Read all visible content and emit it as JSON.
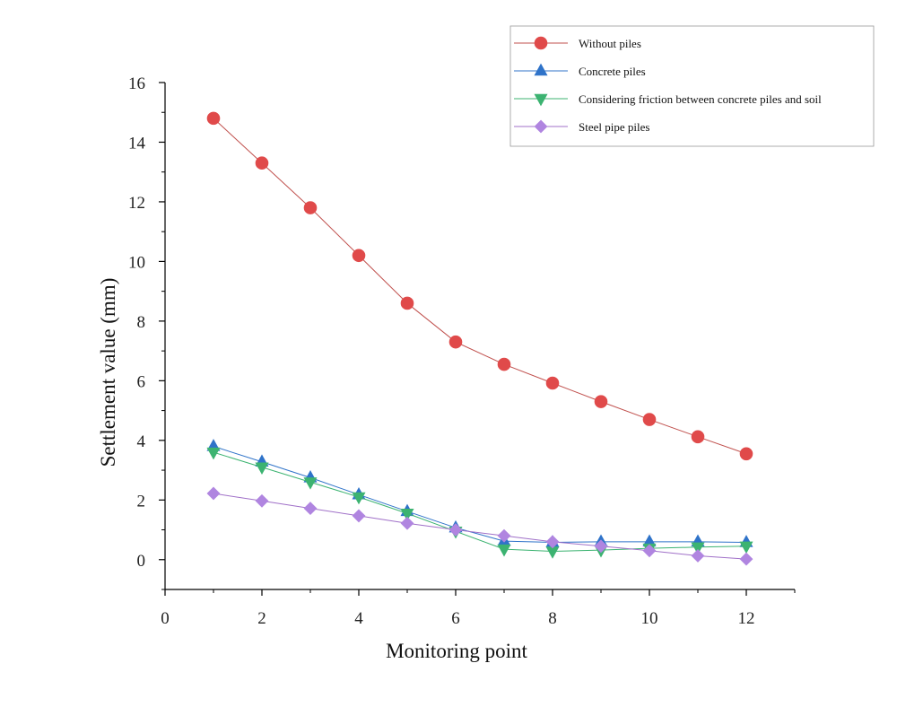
{
  "chart_data": {
    "type": "line",
    "xlabel": "Monitoring point",
    "ylabel": "Settlement value (mm)",
    "xlim": [
      0,
      13
    ],
    "ylim": [
      -1,
      16
    ],
    "xticks": [
      0,
      2,
      4,
      6,
      8,
      10,
      12
    ],
    "yticks": [
      0,
      2,
      4,
      6,
      8,
      10,
      12,
      14,
      16
    ],
    "grid": false,
    "legend_position": "top-right",
    "x": [
      1,
      2,
      3,
      4,
      5,
      6,
      7,
      8,
      9,
      10,
      11,
      12
    ],
    "series": [
      {
        "name": "Without piles",
        "marker": "circle",
        "color": "#e04a4a",
        "line_color": "#c0504d",
        "values": [
          14.8,
          13.3,
          11.8,
          10.2,
          8.6,
          7.3,
          6.55,
          5.92,
          5.3,
          4.7,
          4.12,
          3.55
        ]
      },
      {
        "name": "Concrete piles",
        "marker": "triangle-up",
        "color": "#2f73c9",
        "line_color": "#2f73c9",
        "values": [
          3.8,
          3.28,
          2.75,
          2.18,
          1.62,
          1.07,
          0.62,
          0.58,
          0.6,
          0.6,
          0.6,
          0.58
        ]
      },
      {
        "name": "Considering friction between concrete piles and soil",
        "marker": "triangle-down",
        "color": "#3cb371",
        "line_color": "#3cb371",
        "values": [
          3.6,
          3.1,
          2.6,
          2.1,
          1.55,
          0.95,
          0.35,
          0.28,
          0.32,
          0.38,
          0.42,
          0.45
        ]
      },
      {
        "name": "Steel pipe piles",
        "marker": "diamond",
        "color": "#b085e0",
        "line_color": "#a070c8",
        "values": [
          2.22,
          1.97,
          1.72,
          1.47,
          1.22,
          1.0,
          0.8,
          0.6,
          0.45,
          0.3,
          0.13,
          0.02
        ]
      }
    ]
  }
}
